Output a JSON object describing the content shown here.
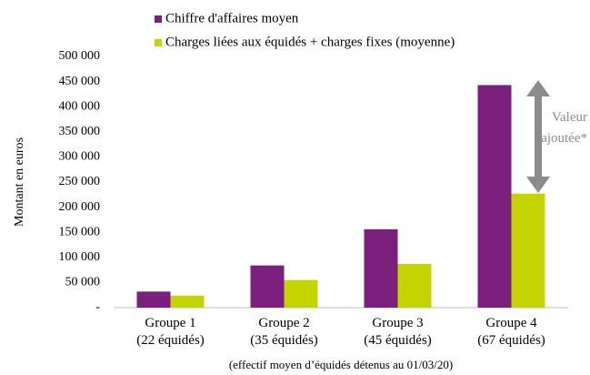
{
  "chart_data": {
    "type": "bar",
    "categories": [
      "Groupe 1\n(22 équidés)",
      "Groupe 2\n(35 équidés)",
      "Groupe 3\n(45 équidés)",
      "Groupe 4\n(67 équidés)"
    ],
    "series": [
      {
        "name": "Chiffre d'affaires moyen",
        "color": "#7b1f7c",
        "values": [
          32000,
          84000,
          156000,
          443000
        ]
      },
      {
        "name": "Charges liées aux équidés + charges fixes (moyenne)",
        "color": "#c4d400",
        "values": [
          24000,
          55000,
          87000,
          227000
        ]
      }
    ],
    "ylabel": "Montant en euros",
    "xlabel": "(effectif moyen d’équidés détenus au 01/03/20)",
    "annotation": "Valeur\najoutée*",
    "ylim": [
      0,
      500000
    ],
    "yticks": [
      {
        "value": 0,
        "label": "-"
      },
      {
        "value": 50000,
        "label": "50 000"
      },
      {
        "value": 100000,
        "label": "100 000"
      },
      {
        "value": 150000,
        "label": "150 000"
      },
      {
        "value": 200000,
        "label": "200 000"
      },
      {
        "value": 250000,
        "label": "250 000"
      },
      {
        "value": 300000,
        "label": "300 000"
      },
      {
        "value": 350000,
        "label": "350 000"
      },
      {
        "value": 400000,
        "label": "400 000"
      },
      {
        "value": 450000,
        "label": "450 000"
      },
      {
        "value": 500000,
        "label": "500 000"
      }
    ],
    "grid": false
  }
}
